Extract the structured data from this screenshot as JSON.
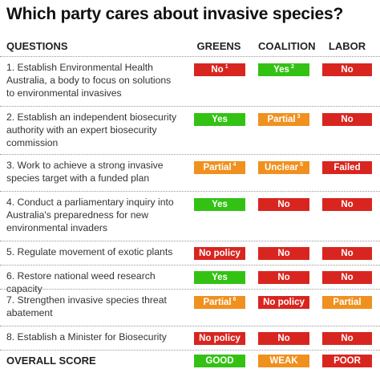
{
  "title": "Which party cares about invasive species?",
  "headers": {
    "questions": "QUESTIONS",
    "greens": "GREENS",
    "coalition": "COALITION",
    "labor": "LABOR"
  },
  "colors": {
    "red": "#d9251f",
    "green": "#33c214",
    "orange": "#f0901e"
  },
  "rows": [
    {
      "question": "1. Establish Environmental Health Australia, a body to focus on solutions to environmental invasives",
      "greens": {
        "text": "No",
        "note": "1",
        "color": "red"
      },
      "coalition": {
        "text": "Yes",
        "note": "2",
        "color": "green"
      },
      "labor": {
        "text": "No",
        "note": "",
        "color": "red"
      }
    },
    {
      "question": "2. Establish an independent biosecurity authority with an expert biosecurity commission",
      "greens": {
        "text": "Yes",
        "note": "",
        "color": "green"
      },
      "coalition": {
        "text": "Partial",
        "note": "3",
        "color": "orange"
      },
      "labor": {
        "text": "No",
        "note": "",
        "color": "red"
      }
    },
    {
      "question": "3. Work to achieve a strong invasive species target with a funded plan",
      "greens": {
        "text": "Partial",
        "note": "4",
        "color": "orange"
      },
      "coalition": {
        "text": "Unclear",
        "note": "5",
        "color": "orange"
      },
      "labor": {
        "text": "Failed",
        "note": "",
        "color": "red"
      }
    },
    {
      "question": "4. Conduct a parliamentary inquiry into Australia's preparedness for new environmental invaders",
      "greens": {
        "text": "Yes",
        "note": "",
        "color": "green"
      },
      "coalition": {
        "text": "No",
        "note": "",
        "color": "red"
      },
      "labor": {
        "text": "No",
        "note": "",
        "color": "red"
      }
    },
    {
      "question": "5. Regulate movement of exotic plants",
      "greens": {
        "text": "No policy",
        "note": "",
        "color": "red"
      },
      "coalition": {
        "text": "No",
        "note": "",
        "color": "red"
      },
      "labor": {
        "text": "No",
        "note": "",
        "color": "red"
      }
    },
    {
      "question": "6. Restore national weed research capacity",
      "greens": {
        "text": "Yes",
        "note": "",
        "color": "green"
      },
      "coalition": {
        "text": "No",
        "note": "",
        "color": "red"
      },
      "labor": {
        "text": "No",
        "note": "",
        "color": "red"
      }
    },
    {
      "question": "7. Strengthen invasive species threat abatement",
      "greens": {
        "text": "Partial",
        "note": "6",
        "color": "orange"
      },
      "coalition": {
        "text": "No policy",
        "note": "",
        "color": "red"
      },
      "labor": {
        "text": "Partial",
        "note": "",
        "color": "orange"
      }
    },
    {
      "question": "8. Establish a Minister for Biosecurity",
      "greens": {
        "text": "No policy",
        "note": "",
        "color": "red"
      },
      "coalition": {
        "text": "No",
        "note": "",
        "color": "red"
      },
      "labor": {
        "text": "No",
        "note": "",
        "color": "red"
      }
    }
  ],
  "overall": {
    "label": "OVERALL SCORE",
    "greens": {
      "text": "GOOD",
      "color": "green"
    },
    "coalition": {
      "text": "WEAK",
      "color": "orange"
    },
    "labor": {
      "text": "POOR",
      "color": "red"
    }
  }
}
